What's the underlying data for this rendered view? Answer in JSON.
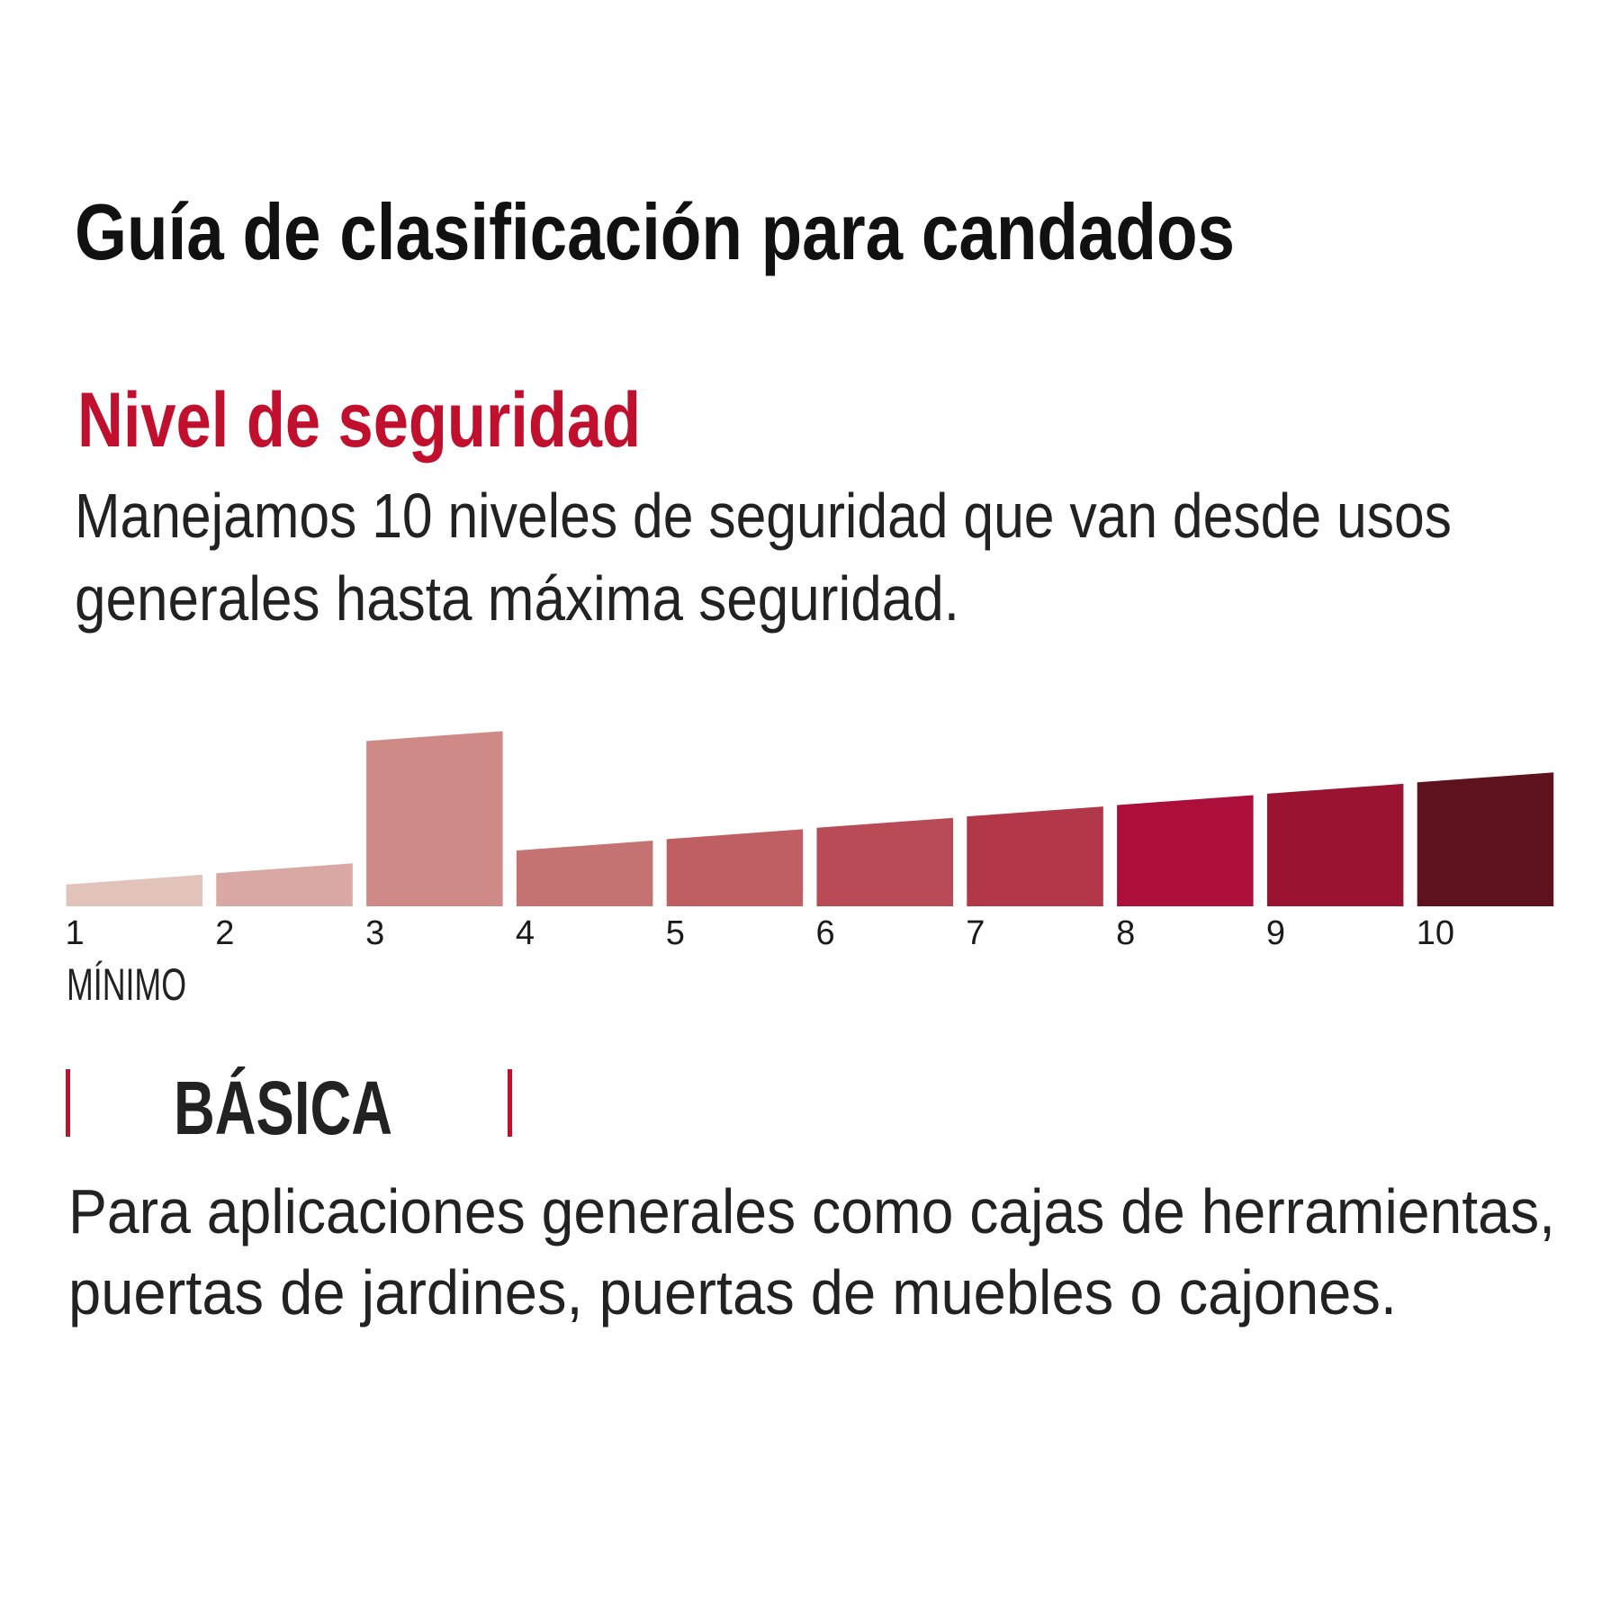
{
  "title": "Guía de clasificación para candados",
  "subtitle": "Nivel de seguridad",
  "intro_lines": [
    "Manejamos 10 niveles de seguridad que van desde usos",
    "generales hasta máxima seguridad."
  ],
  "accent_color": "#c0102e",
  "chart_data": {
    "type": "bar",
    "categories": [
      "1",
      "2",
      "3",
      "4",
      "5",
      "6",
      "7",
      "8",
      "9",
      "10"
    ],
    "values": [
      21,
      32,
      160,
      54,
      65,
      76,
      87,
      98,
      109,
      120
    ],
    "highlighted_category": "3",
    "colors": [
      "#e2c3b9",
      "#d9a8a4",
      "#cf8a87",
      "#c47272",
      "#bf5f63",
      "#b84b55",
      "#b23748",
      "#ab0f3a",
      "#9a1432",
      "#5e121e"
    ],
    "axis_note": "MÍNIMO",
    "grid": false
  },
  "category": {
    "label": "BÁSICA",
    "description_lines": [
      "Para aplicaciones generales como cajas de herramientas,",
      "puertas de jardines, puertas de muebles o cajones."
    ]
  }
}
